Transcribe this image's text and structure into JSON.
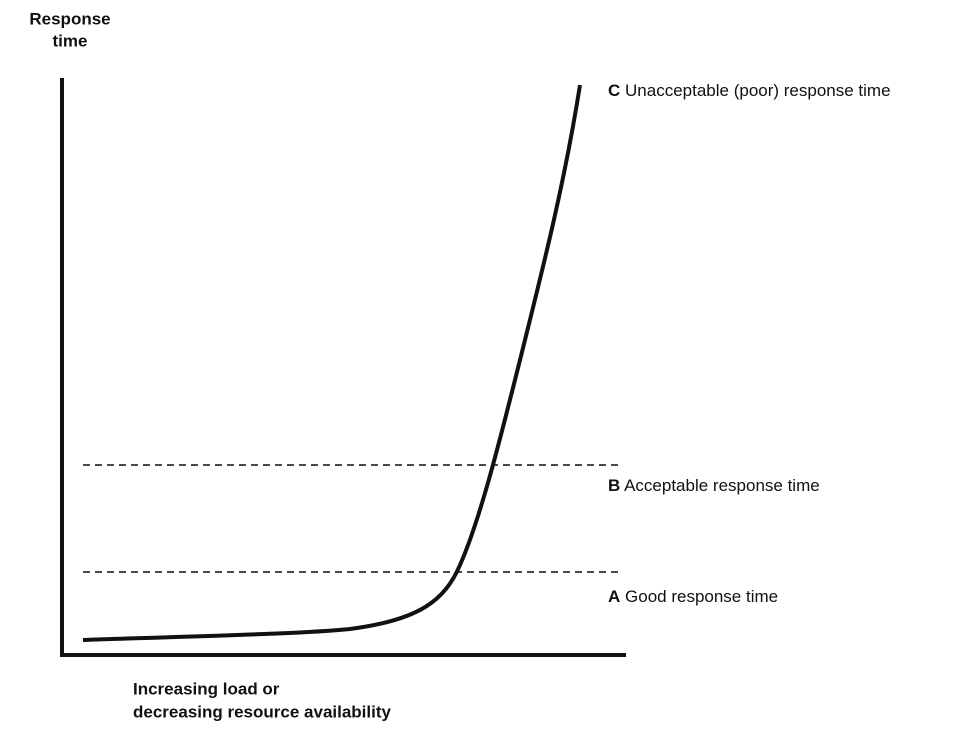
{
  "y_axis_label": [
    "Response",
    "time"
  ],
  "x_axis_label": [
    "Increasing load or",
    "decreasing resource availability"
  ],
  "zones": [
    {
      "letter": "C",
      "label": "Unacceptable (poor) response time"
    },
    {
      "letter": "B",
      "label": "Acceptable response time"
    },
    {
      "letter": "A",
      "label": "Good response time"
    }
  ]
}
